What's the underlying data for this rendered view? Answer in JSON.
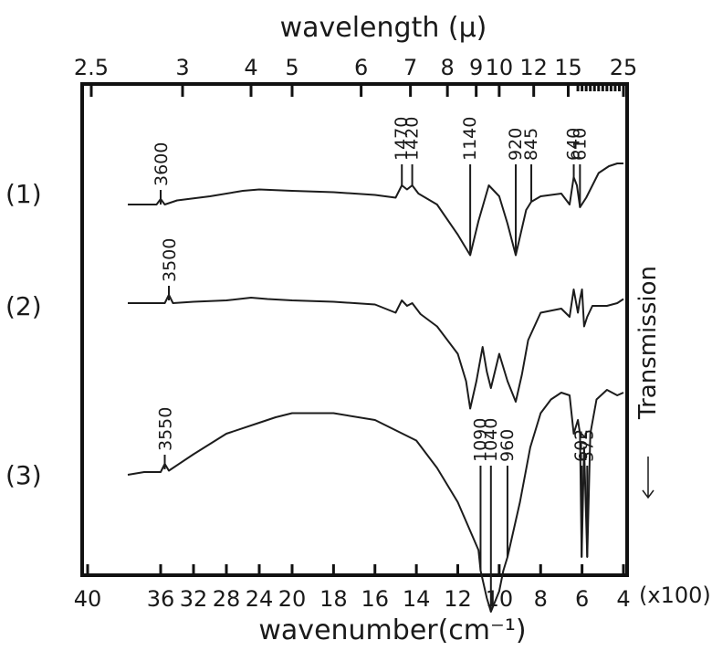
{
  "chart_data": {
    "type": "line",
    "title": "",
    "xlabel_top": "wavelength (μ)",
    "xlabel_bottom": "wavenumber(cm⁻¹)",
    "ylabel": "Transmission",
    "bottom_ticks": [
      "40",
      "36",
      "32",
      "28",
      "24",
      "20",
      "18",
      "16",
      "14",
      "12",
      "10",
      "8",
      "6",
      "4"
    ],
    "bottom_ticks_values": [
      4000,
      3600,
      3200,
      2800,
      2400,
      2000,
      1800,
      1600,
      1400,
      1200,
      1000,
      800,
      600,
      400
    ],
    "bottom_unit": "(x100)",
    "top_ticks": [
      "2.5",
      "3",
      "4",
      "5",
      "6",
      "7",
      "8",
      "9",
      "10",
      "12",
      "15",
      "25"
    ],
    "xlim": [
      4000,
      400
    ],
    "series": [
      {
        "name": "(1)",
        "peak_labels": [
          "3600",
          "1470",
          "1420",
          "1140",
          "920",
          "845",
          "640",
          "610"
        ],
        "peaks": [
          3600,
          1470,
          1420,
          1140,
          920,
          845,
          640,
          610
        ],
        "points": [
          [
            4000,
            8
          ],
          [
            3800,
            8
          ],
          [
            3650,
            8
          ],
          [
            3600,
            4
          ],
          [
            3550,
            8
          ],
          [
            3400,
            5
          ],
          [
            3000,
            2
          ],
          [
            2600,
            -2
          ],
          [
            2400,
            -3
          ],
          [
            2000,
            -2
          ],
          [
            1800,
            -1
          ],
          [
            1600,
            1
          ],
          [
            1500,
            3
          ],
          [
            1470,
            -6
          ],
          [
            1445,
            -3
          ],
          [
            1420,
            -6
          ],
          [
            1390,
            0
          ],
          [
            1300,
            8
          ],
          [
            1200,
            30
          ],
          [
            1140,
            45
          ],
          [
            1100,
            20
          ],
          [
            1050,
            -6
          ],
          [
            1000,
            2
          ],
          [
            960,
            22
          ],
          [
            920,
            45
          ],
          [
            870,
            12
          ],
          [
            845,
            6
          ],
          [
            800,
            2
          ],
          [
            700,
            0
          ],
          [
            660,
            8
          ],
          [
            640,
            -12
          ],
          [
            625,
            -6
          ],
          [
            610,
            10
          ],
          [
            580,
            3
          ],
          [
            520,
            -15
          ],
          [
            470,
            -20
          ],
          [
            430,
            -22
          ],
          [
            400,
            -22
          ]
        ]
      },
      {
        "name": "(2)",
        "peak_labels": [
          "3500"
        ],
        "peaks": [
          3500
        ],
        "points": [
          [
            4000,
            -2
          ],
          [
            3800,
            -2
          ],
          [
            3550,
            -2
          ],
          [
            3500,
            -8
          ],
          [
            3450,
            -2
          ],
          [
            3200,
            -3
          ],
          [
            2800,
            -4
          ],
          [
            2500,
            -6
          ],
          [
            2300,
            -5
          ],
          [
            2000,
            -4
          ],
          [
            1800,
            -3
          ],
          [
            1600,
            -1
          ],
          [
            1500,
            5
          ],
          [
            1470,
            -4
          ],
          [
            1445,
            0
          ],
          [
            1420,
            -2
          ],
          [
            1380,
            6
          ],
          [
            1300,
            15
          ],
          [
            1200,
            35
          ],
          [
            1160,
            55
          ],
          [
            1140,
            75
          ],
          [
            1110,
            55
          ],
          [
            1080,
            30
          ],
          [
            1060,
            48
          ],
          [
            1040,
            60
          ],
          [
            1000,
            35
          ],
          [
            960,
            55
          ],
          [
            920,
            70
          ],
          [
            890,
            50
          ],
          [
            860,
            25
          ],
          [
            800,
            5
          ],
          [
            700,
            2
          ],
          [
            660,
            8
          ],
          [
            640,
            -12
          ],
          [
            620,
            5
          ],
          [
            610,
            -5
          ],
          [
            600,
            -12
          ],
          [
            590,
            15
          ],
          [
            575,
            8
          ],
          [
            550,
            0
          ],
          [
            480,
            0
          ],
          [
            430,
            -2
          ],
          [
            400,
            -5
          ]
        ]
      },
      {
        "name": "(3)",
        "peak_labels": [
          "3550",
          "1090",
          "1040",
          "960",
          "602",
          "575"
        ],
        "peaks": [
          3550,
          1090,
          1040,
          960,
          602,
          575
        ],
        "points": [
          [
            4000,
            0
          ],
          [
            3800,
            -2
          ],
          [
            3600,
            -2
          ],
          [
            3550,
            -8
          ],
          [
            3500,
            -3
          ],
          [
            3200,
            -15
          ],
          [
            2800,
            -30
          ],
          [
            2400,
            -38
          ],
          [
            2200,
            -42
          ],
          [
            2000,
            -45
          ],
          [
            1800,
            -45
          ],
          [
            1600,
            -40
          ],
          [
            1400,
            -25
          ],
          [
            1300,
            -5
          ],
          [
            1200,
            20
          ],
          [
            1100,
            55
          ],
          [
            1090,
            70
          ],
          [
            1060,
            90
          ],
          [
            1040,
            100
          ],
          [
            1000,
            85
          ],
          [
            980,
            70
          ],
          [
            960,
            60
          ],
          [
            900,
            20
          ],
          [
            850,
            -20
          ],
          [
            800,
            -45
          ],
          [
            750,
            -55
          ],
          [
            700,
            -60
          ],
          [
            660,
            -58
          ],
          [
            640,
            -30
          ],
          [
            620,
            -40
          ],
          [
            610,
            -30
          ],
          [
            602,
            60
          ],
          [
            590,
            -20
          ],
          [
            575,
            60
          ],
          [
            560,
            -30
          ],
          [
            530,
            -55
          ],
          [
            480,
            -62
          ],
          [
            430,
            -58
          ],
          [
            400,
            -60
          ]
        ]
      }
    ]
  }
}
